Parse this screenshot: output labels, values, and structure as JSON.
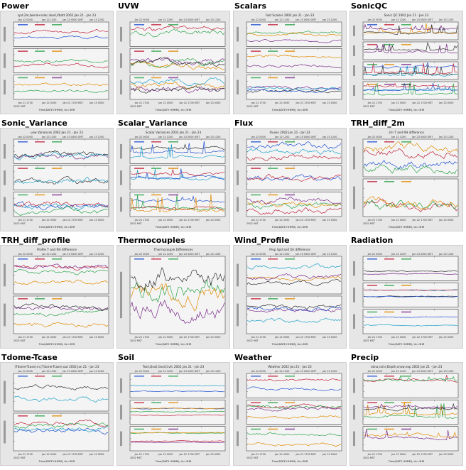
{
  "grid": {
    "columns": 4,
    "rows": 4
  },
  "colors": {
    "background": "#ffffff",
    "thumb_bg": "#e6e6e6",
    "plot_bg": "#f4f4f4",
    "frame": "#444444",
    "series": [
      "#1f4fd0",
      "#c0203a",
      "#2aa34a",
      "#e08a00",
      "#7a2a8a",
      "#303030",
      "#1aa0c8"
    ]
  },
  "panels": [
    {
      "name": "Power",
      "header": "spd.2m,twind+solar,iload,Vbatt 2002 Jan 21 - Jan 23",
      "subplots": 3,
      "style": "mixed"
    },
    {
      "name": "UVW",
      "header": "",
      "subplots": 3,
      "style": "noisy"
    },
    {
      "name": "Scalars",
      "header": "Fast Scalars 2002 Jan 21 - Jan 23",
      "subplots": 3,
      "style": "mixed"
    },
    {
      "name": "SonicQC",
      "header": "Sonic QC 2002 Jan 21 - Jan 23",
      "subplots": 4,
      "style": "spikes"
    },
    {
      "name": "Sonic_Variance",
      "header": "uvw Variances 2002 Jan 21 - Jan 23",
      "subplots": 3,
      "style": "noisy"
    },
    {
      "name": "Scalar_Variance",
      "header": "Scalar Variances 2002 Jan 21 - Jan 23",
      "subplots": 3,
      "style": "spikes"
    },
    {
      "name": "Flux",
      "header": "Fluxes 2002 Jan 21 - Jan 23",
      "subplots": 3,
      "style": "noisy"
    },
    {
      "name": "TRH_diff_2m",
      "header": "2m T and RH difference",
      "subplots": 2,
      "style": "noisy"
    },
    {
      "name": "TRH_diff_profile",
      "header": "Profile T and RH difference",
      "subplots": 2,
      "style": "mixed"
    },
    {
      "name": "Thermocouples",
      "header": "Thermocouple Differences",
      "subplots": 1,
      "style": "noisy"
    },
    {
      "name": "Wind_Profile",
      "header": "Prop Spd and Dir difference",
      "subplots": 2,
      "style": "mixed"
    },
    {
      "name": "Radiation",
      "header": "",
      "subplots": 3,
      "style": "smooth"
    },
    {
      "name": "Tdome-Tcase",
      "header": "(Tdome-Tcase).in,(Tdome-Tcase).out 2002 Jan 21 - Jan 23",
      "subplots": 2,
      "style": "mixed"
    },
    {
      "name": "Soil",
      "header": "Tsoil,Qsoil,Gsoil,Cvfc 2002 Jan 21 - Jan 23",
      "subplots": 3,
      "style": "smooth"
    },
    {
      "name": "Weather",
      "header": "Weather 2002 Jan 21 - Jan 23",
      "subplots": 3,
      "style": "mixed"
    },
    {
      "name": "Precip",
      "header": "raina,rainr,Depth,snow,exp 2002 Jan 21 - Jan 23",
      "subplots": 3,
      "style": "spikes"
    }
  ],
  "axis_bottom": {
    "ticks_top": [
      "Jan 22 0000",
      "Jan 22 1200",
      "Jan 23 0000 GMT",
      "Jan 23 1200"
    ],
    "ticks_bottom": [
      "Jan 21 1700",
      "Jan 22 0500",
      "Jan 22 1700 MST",
      "Jan 23 0500"
    ],
    "year_label": "2002 MST",
    "xlabel": "Time(DATE HHMM), tic=3HR"
  }
}
